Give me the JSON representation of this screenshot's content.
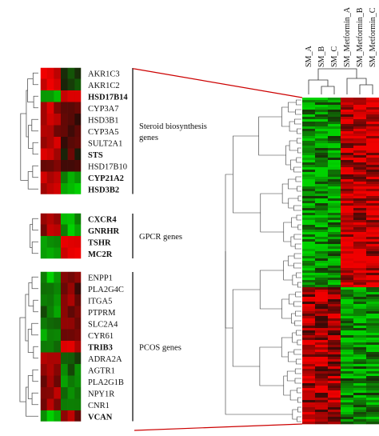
{
  "samples": [
    "SM_A",
    "SM_B",
    "SM_C",
    "SM_Metformin_A",
    "SM_Metformin_B",
    "SM_Metformin_C"
  ],
  "groups": [
    {
      "label_lines": [
        "Steroid biosynthesis",
        "genes"
      ],
      "genes": [
        {
          "name": "AKR1C3",
          "bold": false
        },
        {
          "name": "AKR1C2",
          "bold": false
        },
        {
          "name": "HSD17B14",
          "bold": true
        },
        {
          "name": "CYP3A7",
          "bold": false
        },
        {
          "name": "HSD3B1",
          "bold": false
        },
        {
          "name": "CYP3A5",
          "bold": false
        },
        {
          "name": "SULT2A1",
          "bold": false
        },
        {
          "name": "STS",
          "bold": true
        },
        {
          "name": "HSD17B10",
          "bold": false
        },
        {
          "name": "CYP21A2",
          "bold": true
        },
        {
          "name": "HSD3B2",
          "bold": true
        }
      ]
    },
    {
      "label_lines": [
        "GPCR genes"
      ],
      "genes": [
        {
          "name": "CXCR4",
          "bold": true
        },
        {
          "name": "GNRHR",
          "bold": true
        },
        {
          "name": "TSHR",
          "bold": true
        },
        {
          "name": "MC2R",
          "bold": true
        }
      ]
    },
    {
      "label_lines": [
        "PCOS genes"
      ],
      "genes": [
        {
          "name": "ENPP1",
          "bold": false
        },
        {
          "name": "PLA2G4C",
          "bold": false
        },
        {
          "name": "ITGA5",
          "bold": false
        },
        {
          "name": "PTPRM",
          "bold": false
        },
        {
          "name": "SLC2A4",
          "bold": false
        },
        {
          "name": "CYR61",
          "bold": false
        },
        {
          "name": "TRIB3",
          "bold": true
        },
        {
          "name": "ADRA2A",
          "bold": false
        },
        {
          "name": "AGTR1",
          "bold": false
        },
        {
          "name": "PLA2G1B",
          "bold": false
        },
        {
          "name": "NPY1R",
          "bold": false
        },
        {
          "name": "CNR1",
          "bold": false
        },
        {
          "name": "VCAN",
          "bold": true
        }
      ]
    }
  ],
  "colors": {
    "up": "#e00000",
    "down": "#00c800",
    "neutral": "#1a0a05",
    "connector": "#cc0000"
  }
}
